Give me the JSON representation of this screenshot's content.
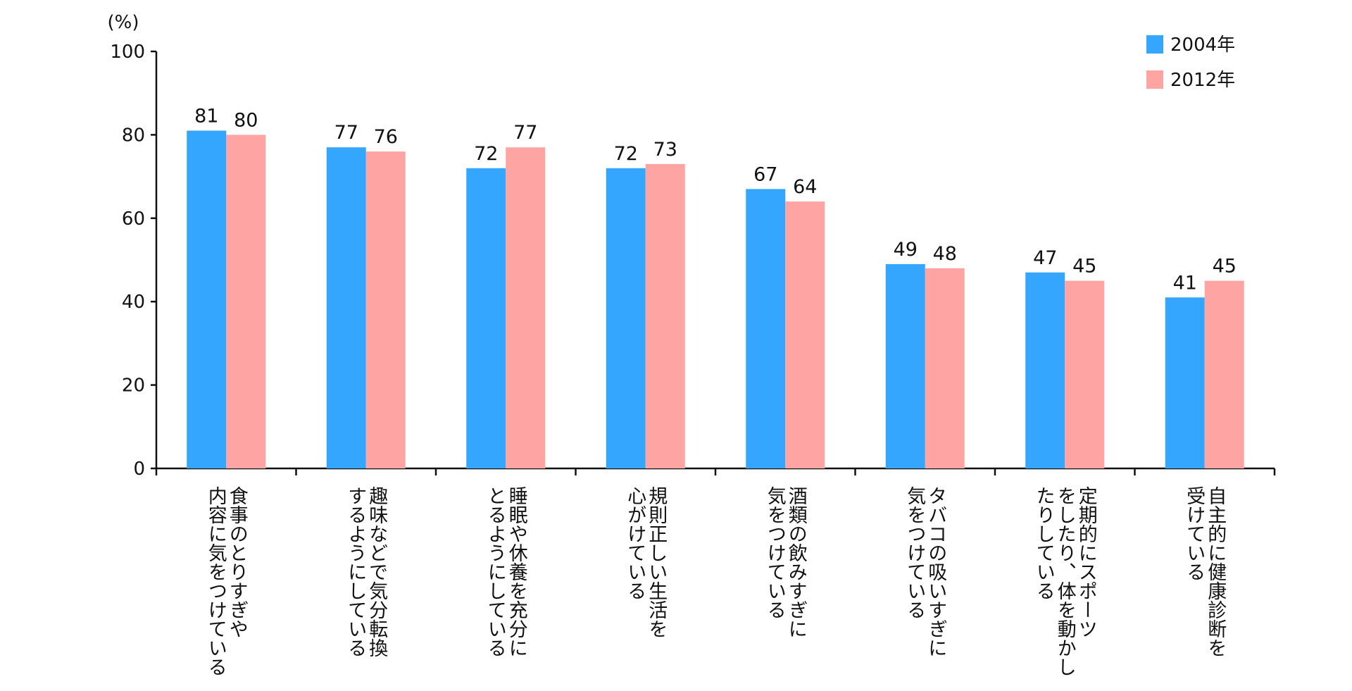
{
  "chart_data": {
    "type": "bar",
    "unit": "(%)",
    "ylim": [
      0,
      100
    ],
    "yticks": [
      0,
      20,
      40,
      60,
      80,
      100
    ],
    "categories": [
      [
        "食事のとりすぎや",
        "内容に気をつけている"
      ],
      [
        "趣味などで気分転換",
        "するようにしている"
      ],
      [
        "睡眠や休養を充分に",
        "とるようにしている"
      ],
      [
        "規則正しい生活を",
        "心がけている"
      ],
      [
        "酒類の飲みすぎに",
        "気をつけている"
      ],
      [
        "タバコの吸いすぎに",
        "気をつけている"
      ],
      [
        "定期的にスポーツ",
        "をしたり、体を動かし",
        "たりしている"
      ],
      [
        "自主的に健康診断を",
        "受けている"
      ]
    ],
    "series": [
      {
        "name": "2004年",
        "color": "#35a6fd",
        "values": [
          81,
          77,
          72,
          72,
          67,
          49,
          47,
          41
        ]
      },
      {
        "name": "2012年",
        "color": "#fea4a3",
        "values": [
          80,
          76,
          77,
          73,
          64,
          48,
          45,
          45
        ]
      }
    ],
    "legend_position": "top-right",
    "grid": false
  }
}
